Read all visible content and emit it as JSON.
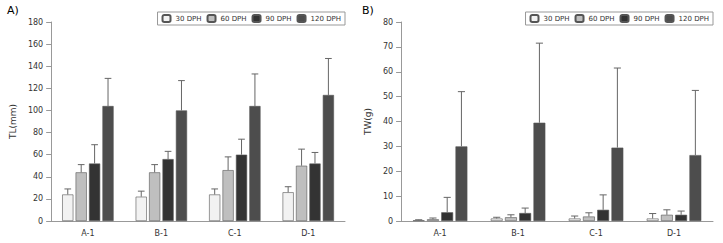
{
  "chart_data": [
    {
      "type": "bar",
      "title": "A)",
      "y_label": "TL(mm)",
      "categories": [
        "A-1",
        "B-1",
        "C-1",
        "D-1"
      ],
      "ylim": [
        0,
        180
      ],
      "yticks": [
        0,
        20,
        40,
        60,
        80,
        100,
        120,
        140,
        160,
        180
      ],
      "grid": false,
      "legend": "upper right",
      "series": [
        {
          "name": "30 DPH",
          "color": "#f2f2f2",
          "values": [
            24,
            22,
            24,
            26
          ],
          "errors": [
            5,
            5,
            5,
            5
          ]
        },
        {
          "name": "60 DPH",
          "color": "#bfbfbf",
          "values": [
            44,
            44,
            46,
            50
          ],
          "errors": [
            7,
            7,
            12,
            15
          ]
        },
        {
          "name": "90 DPH",
          "color": "#333333",
          "values": [
            52,
            56,
            60,
            52
          ],
          "errors": [
            17,
            7,
            14,
            10
          ]
        },
        {
          "name": "120 DPH",
          "color": "#4d4d4d",
          "values": [
            104,
            100,
            104,
            114
          ],
          "errors": [
            25,
            27,
            29,
            33
          ]
        }
      ]
    },
    {
      "type": "bar",
      "title": "B)",
      "y_label": "TW(g)",
      "categories": [
        "A-1",
        "B-1",
        "C-1",
        "D-1"
      ],
      "ylim": [
        0,
        80
      ],
      "yticks": [
        0,
        10,
        20,
        30,
        40,
        50,
        60,
        70,
        80
      ],
      "grid": false,
      "legend": "upper right",
      "series": [
        {
          "name": "30 DPH",
          "color": "#f2f2f2",
          "values": [
            0.3,
            1,
            1,
            1
          ],
          "errors": [
            0.2,
            0.5,
            1,
            2
          ]
        },
        {
          "name": "60 DPH",
          "color": "#bfbfbf",
          "values": [
            0.7,
            1.5,
            1.8,
            2.5
          ],
          "errors": [
            0.5,
            1,
            1.5,
            2
          ]
        },
        {
          "name": "90 DPH",
          "color": "#333333",
          "values": [
            3.5,
            3.2,
            4.5,
            2.5
          ],
          "errors": [
            6,
            2,
            6,
            1.5
          ]
        },
        {
          "name": "120 DPH",
          "color": "#4d4d4d",
          "values": [
            30,
            39.5,
            29.5,
            26.5
          ],
          "errors": [
            22,
            32,
            32,
            26
          ]
        }
      ]
    }
  ]
}
